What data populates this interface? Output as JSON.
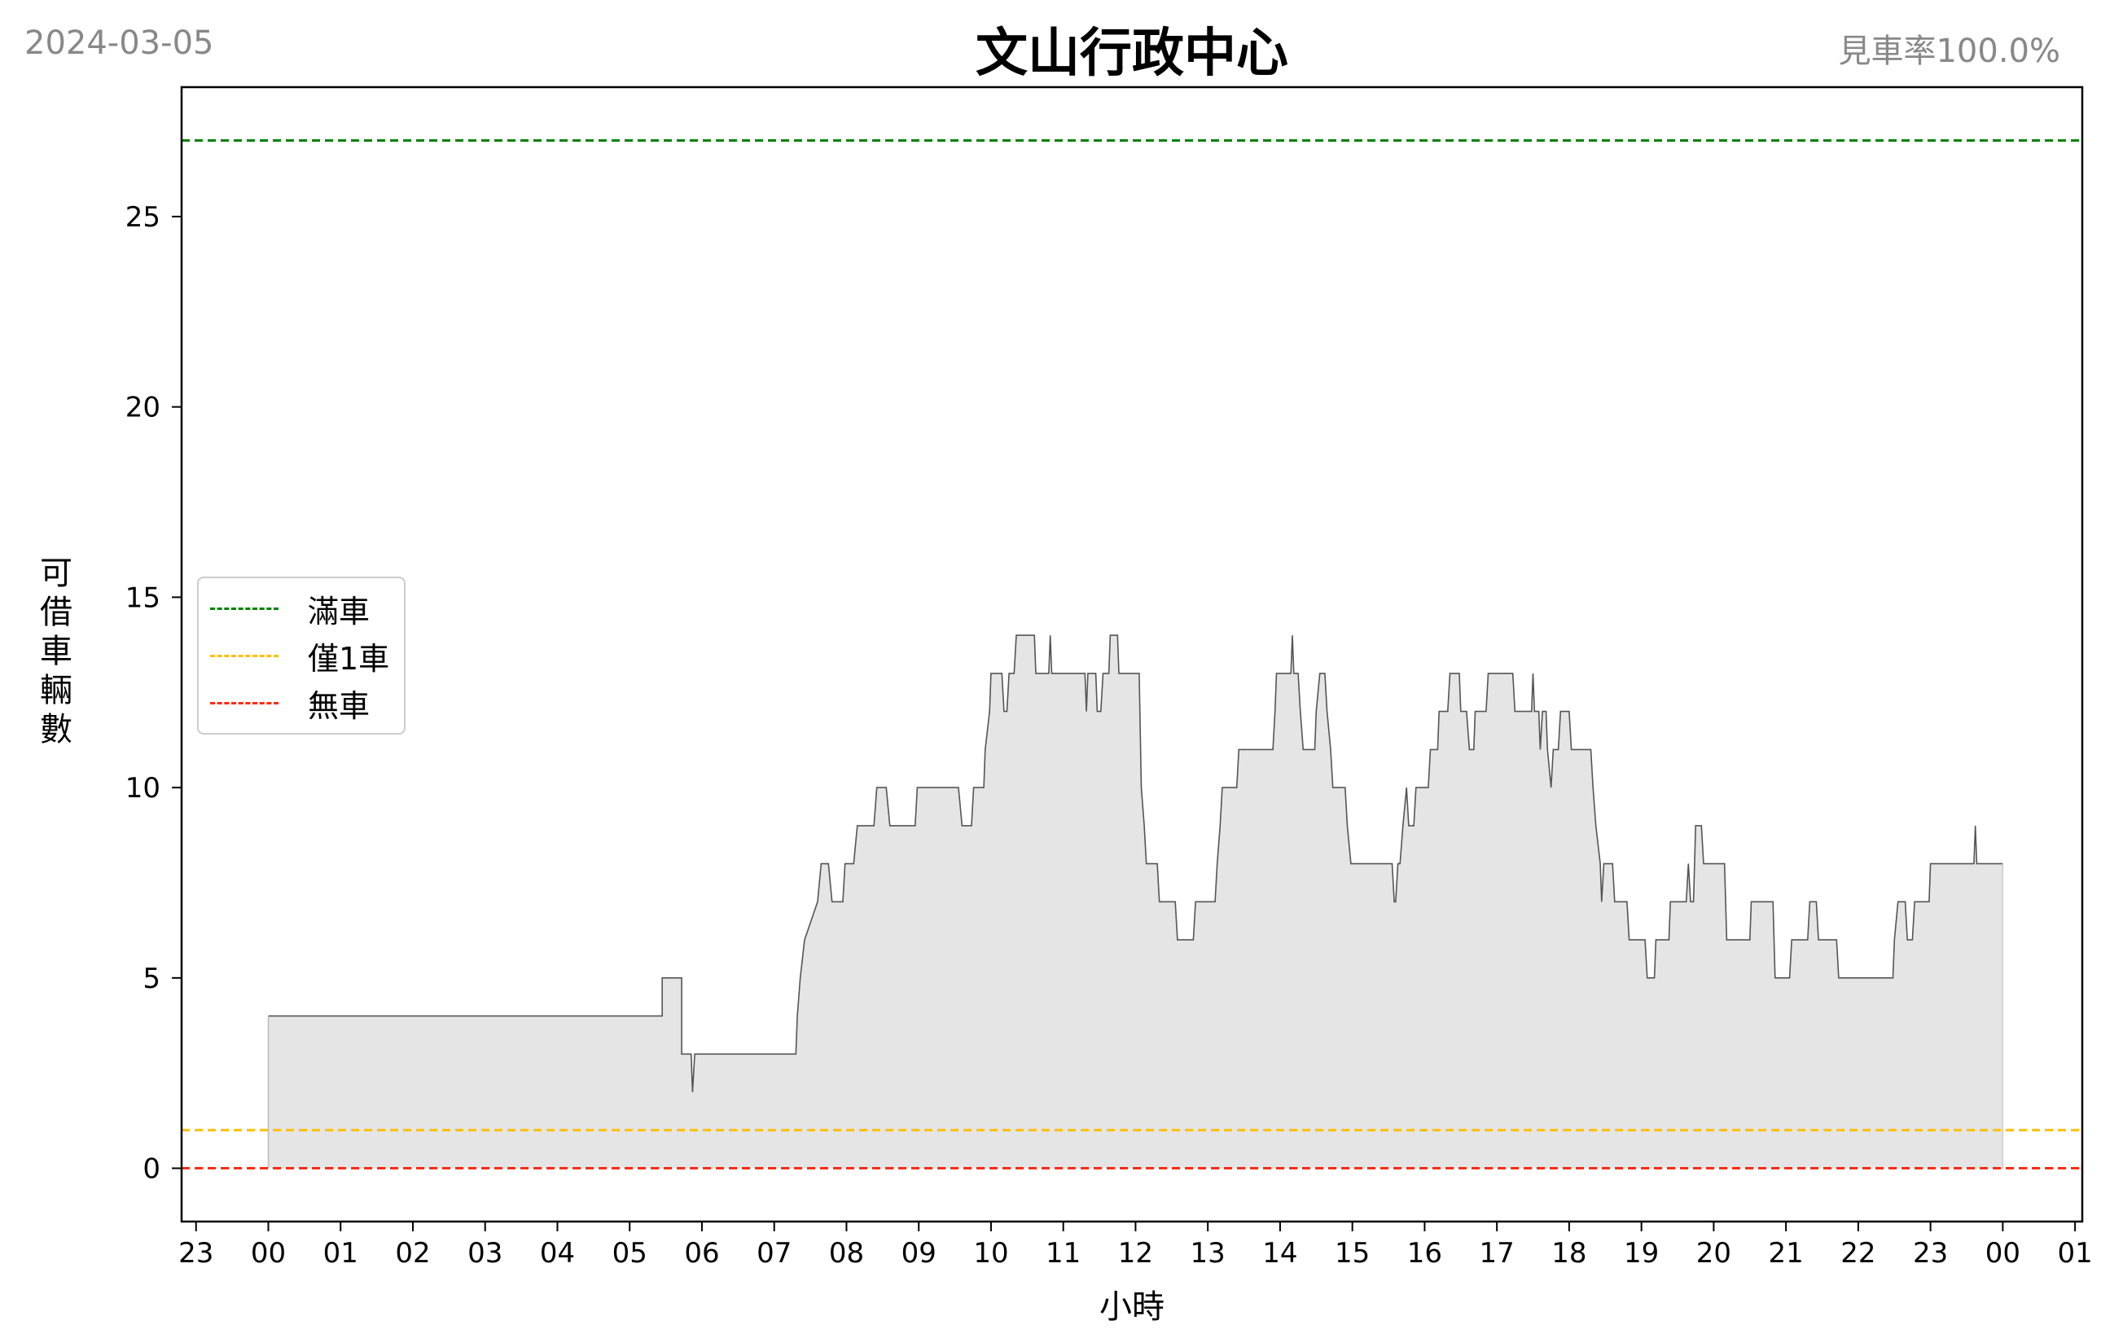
{
  "header": {
    "date": "2024-03-05",
    "title": "文山行政中心",
    "rate": "見車率100.0%"
  },
  "chart_data": {
    "type": "area",
    "title": "文山行政中心",
    "xlabel": "小時",
    "ylabel": "可借車輛數",
    "ylim": [
      -1.4,
      28.4
    ],
    "yticks": [
      0,
      5,
      10,
      15,
      20,
      25
    ],
    "xticks": [
      "23",
      "00",
      "01",
      "02",
      "03",
      "04",
      "05",
      "06",
      "07",
      "08",
      "09",
      "10",
      "11",
      "12",
      "13",
      "14",
      "15",
      "16",
      "17",
      "18",
      "19",
      "20",
      "21",
      "22",
      "23",
      "00",
      "01"
    ],
    "xlim_hours": [
      -1.2,
      25.1
    ],
    "grid": false,
    "legend_position": "center-left",
    "reference_lines": [
      {
        "name": "滿車",
        "value": 27,
        "color": "#008000"
      },
      {
        "name": "僅1車",
        "value": 1,
        "color": "#ffbf00"
      },
      {
        "name": "無車",
        "value": 0,
        "color": "#ff2a12"
      }
    ],
    "series": {
      "color": "#555555",
      "fill": "#e5e5e5",
      "points": [
        [
          0.0,
          4
        ],
        [
          5.45,
          4
        ],
        [
          5.45,
          5
        ],
        [
          5.72,
          5
        ],
        [
          5.72,
          3
        ],
        [
          5.85,
          3
        ],
        [
          5.87,
          2
        ],
        [
          5.9,
          3
        ],
        [
          7.3,
          3
        ],
        [
          7.32,
          4
        ],
        [
          7.36,
          5
        ],
        [
          7.42,
          6
        ],
        [
          7.6,
          7
        ],
        [
          7.65,
          8
        ],
        [
          7.75,
          8
        ],
        [
          7.8,
          7
        ],
        [
          7.95,
          7
        ],
        [
          7.98,
          8
        ],
        [
          8.1,
          8
        ],
        [
          8.15,
          9
        ],
        [
          8.38,
          9
        ],
        [
          8.42,
          10
        ],
        [
          8.55,
          10
        ],
        [
          8.6,
          9
        ],
        [
          8.95,
          9
        ],
        [
          8.98,
          10
        ],
        [
          9.55,
          10
        ],
        [
          9.6,
          9
        ],
        [
          9.73,
          9
        ],
        [
          9.76,
          10
        ],
        [
          9.9,
          10
        ],
        [
          9.92,
          11
        ],
        [
          9.98,
          12
        ],
        [
          10.0,
          13
        ],
        [
          10.15,
          13
        ],
        [
          10.18,
          12
        ],
        [
          10.22,
          12
        ],
        [
          10.25,
          13
        ],
        [
          10.32,
          13
        ],
        [
          10.35,
          14
        ],
        [
          10.6,
          14
        ],
        [
          10.62,
          13
        ],
        [
          10.8,
          13
        ],
        [
          10.82,
          14
        ],
        [
          10.84,
          13
        ],
        [
          11.3,
          13
        ],
        [
          11.32,
          12
        ],
        [
          11.34,
          13
        ],
        [
          11.45,
          13
        ],
        [
          11.47,
          12
        ],
        [
          11.52,
          12
        ],
        [
          11.55,
          13
        ],
        [
          11.63,
          13
        ],
        [
          11.65,
          14
        ],
        [
          11.75,
          14
        ],
        [
          11.77,
          13
        ],
        [
          12.05,
          13
        ],
        [
          12.08,
          10
        ],
        [
          12.12,
          9
        ],
        [
          12.15,
          8
        ],
        [
          12.3,
          8
        ],
        [
          12.33,
          7
        ],
        [
          12.55,
          7
        ],
        [
          12.58,
          6
        ],
        [
          12.8,
          6
        ],
        [
          12.83,
          7
        ],
        [
          13.1,
          7
        ],
        [
          13.13,
          8
        ],
        [
          13.17,
          9
        ],
        [
          13.2,
          10
        ],
        [
          13.4,
          10
        ],
        [
          13.43,
          11
        ],
        [
          13.9,
          11
        ],
        [
          13.93,
          12
        ],
        [
          13.95,
          13
        ],
        [
          14.15,
          13
        ],
        [
          14.17,
          14
        ],
        [
          14.19,
          13
        ],
        [
          14.25,
          13
        ],
        [
          14.28,
          12
        ],
        [
          14.32,
          11
        ],
        [
          14.48,
          11
        ],
        [
          14.5,
          12
        ],
        [
          14.55,
          13
        ],
        [
          14.62,
          13
        ],
        [
          14.65,
          12
        ],
        [
          14.7,
          11
        ],
        [
          14.73,
          10
        ],
        [
          14.9,
          10
        ],
        [
          14.93,
          9
        ],
        [
          14.98,
          8
        ],
        [
          15.55,
          8
        ],
        [
          15.58,
          7
        ],
        [
          15.6,
          7
        ],
        [
          15.63,
          8
        ],
        [
          15.66,
          8
        ],
        [
          15.7,
          9
        ],
        [
          15.75,
          10
        ],
        [
          15.78,
          9
        ],
        [
          15.85,
          9
        ],
        [
          15.88,
          10
        ],
        [
          16.05,
          10
        ],
        [
          16.08,
          11
        ],
        [
          16.18,
          11
        ],
        [
          16.2,
          12
        ],
        [
          16.32,
          12
        ],
        [
          16.35,
          13
        ],
        [
          16.48,
          13
        ],
        [
          16.5,
          12
        ],
        [
          16.58,
          12
        ],
        [
          16.62,
          11
        ],
        [
          16.68,
          11
        ],
        [
          16.7,
          12
        ],
        [
          16.85,
          12
        ],
        [
          16.88,
          13
        ],
        [
          17.22,
          13
        ],
        [
          17.25,
          12
        ],
        [
          17.48,
          12
        ],
        [
          17.5,
          13
        ],
        [
          17.52,
          12
        ],
        [
          17.58,
          12
        ],
        [
          17.6,
          11
        ],
        [
          17.63,
          12
        ],
        [
          17.68,
          12
        ],
        [
          17.7,
          11
        ],
        [
          17.75,
          10
        ],
        [
          17.78,
          11
        ],
        [
          17.85,
          11
        ],
        [
          17.88,
          12
        ],
        [
          18.0,
          12
        ],
        [
          18.03,
          11
        ],
        [
          18.3,
          11
        ],
        [
          18.33,
          10
        ],
        [
          18.37,
          9
        ],
        [
          18.43,
          8
        ],
        [
          18.45,
          7
        ],
        [
          18.48,
          8
        ],
        [
          18.6,
          8
        ],
        [
          18.63,
          7
        ],
        [
          18.8,
          7
        ],
        [
          18.83,
          6
        ],
        [
          19.05,
          6
        ],
        [
          19.08,
          5
        ],
        [
          19.18,
          5
        ],
        [
          19.2,
          6
        ],
        [
          19.38,
          6
        ],
        [
          19.4,
          7
        ],
        [
          19.62,
          7
        ],
        [
          19.65,
          8
        ],
        [
          19.68,
          7
        ],
        [
          19.72,
          7
        ],
        [
          19.75,
          9
        ],
        [
          19.83,
          9
        ],
        [
          19.86,
          8
        ],
        [
          20.15,
          8
        ],
        [
          20.18,
          6
        ],
        [
          20.5,
          6
        ],
        [
          20.52,
          7
        ],
        [
          20.82,
          7
        ],
        [
          20.85,
          5
        ],
        [
          21.05,
          5
        ],
        [
          21.08,
          6
        ],
        [
          21.3,
          6
        ],
        [
          21.33,
          7
        ],
        [
          21.42,
          7
        ],
        [
          21.45,
          6
        ],
        [
          21.7,
          6
        ],
        [
          21.73,
          5
        ],
        [
          22.48,
          5
        ],
        [
          22.5,
          6
        ],
        [
          22.55,
          7
        ],
        [
          22.65,
          7
        ],
        [
          22.68,
          6
        ],
        [
          22.75,
          6
        ],
        [
          22.78,
          7
        ],
        [
          22.98,
          7
        ],
        [
          23.0,
          8
        ],
        [
          23.6,
          8
        ],
        [
          23.62,
          9
        ],
        [
          23.64,
          8
        ],
        [
          24.0,
          8
        ]
      ]
    }
  }
}
